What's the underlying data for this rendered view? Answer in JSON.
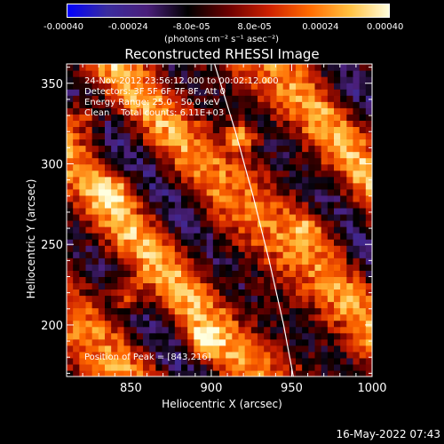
{
  "chart_data": {
    "type": "heatmap",
    "title": "Reconstructed RHESSI Image",
    "xlabel": "Heliocentric X (arcsec)",
    "ylabel": "Heliocentric Y (arcsec)",
    "xlim": [
      810,
      1000
    ],
    "ylim": [
      168,
      362
    ],
    "x_ticks": [
      850,
      900,
      950,
      1000
    ],
    "y_ticks": [
      200,
      250,
      300,
      350
    ],
    "colorbar": {
      "min": -0.0004,
      "max": 0.0004,
      "tick_labels": [
        "-0.00040",
        "-0.00024",
        "-8.0e-05",
        "8.0e-05",
        "0.00024",
        "0.00040"
      ],
      "unit_label": "(photons cm⁻² s⁻¹ asec⁻²)",
      "colormap": [
        "#0000ff",
        "#3a2d9e",
        "#4a1f7a",
        "#000000",
        "#6a0000",
        "#cc2000",
        "#ff6a00",
        "#ffc040",
        "#ffffe0"
      ]
    },
    "info_lines": [
      "24-Nov-2012 23:56:12.000 to 00:02:12.000",
      "Detectors: 3F 5F 6F 7F 8F, Att 0",
      "Energy Range: 25.0 - 50.0 keV",
      "Clean    Total counts: 6.11E+03"
    ],
    "peak_text": "Position of Peak = [843,216]",
    "peak": [
      843,
      216
    ],
    "limb_curve": [
      [
        951,
        168
      ],
      [
        945,
        200
      ],
      [
        936,
        240
      ],
      [
        926,
        280
      ],
      [
        915,
        320
      ],
      [
        902,
        362
      ]
    ]
  },
  "datestamp": "16-May-2022 07:43"
}
